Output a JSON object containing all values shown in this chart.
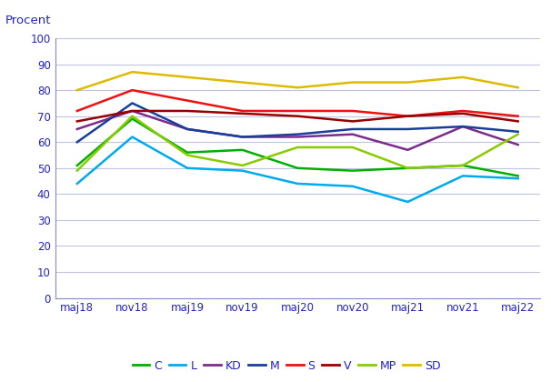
{
  "x_labels": [
    "maj18",
    "nov18",
    "maj19",
    "nov19",
    "maj20",
    "nov20",
    "maj21",
    "nov21",
    "maj22"
  ],
  "series": {
    "C": [
      51,
      69,
      56,
      57,
      50,
      49,
      50,
      51,
      47
    ],
    "L": [
      44,
      62,
      50,
      49,
      44,
      43,
      37,
      47,
      46
    ],
    "KD": [
      65,
      72,
      65,
      62,
      62,
      63,
      57,
      66,
      59
    ],
    "M": [
      60,
      75,
      65,
      62,
      63,
      65,
      65,
      66,
      64
    ],
    "S": [
      72,
      80,
      76,
      72,
      72,
      72,
      70,
      72,
      70
    ],
    "V": [
      68,
      72,
      72,
      71,
      70,
      68,
      70,
      71,
      68
    ],
    "MP": [
      49,
      70,
      55,
      51,
      58,
      58,
      50,
      51,
      63
    ],
    "SD": [
      80,
      87,
      85,
      83,
      81,
      83,
      83,
      85,
      81
    ]
  },
  "colors": {
    "C": "#00b000",
    "L": "#00aaee",
    "KD": "#7b2d8b",
    "M": "#1a3f99",
    "S": "#ee1111",
    "V": "#990000",
    "MP": "#88cc00",
    "SD": "#ddbb00"
  },
  "legend_order": [
    "C",
    "L",
    "KD",
    "M",
    "S",
    "V",
    "MP",
    "SD"
  ],
  "procent_label": "Procent",
  "ylim": [
    0,
    100
  ],
  "yticks": [
    0,
    10,
    20,
    30,
    40,
    50,
    60,
    70,
    80,
    90,
    100
  ],
  "background_color": "#ffffff",
  "grid_color": "#c0c4e0",
  "text_color": "#2222cc",
  "axis_color": "#8888cc",
  "linewidth": 1.8
}
